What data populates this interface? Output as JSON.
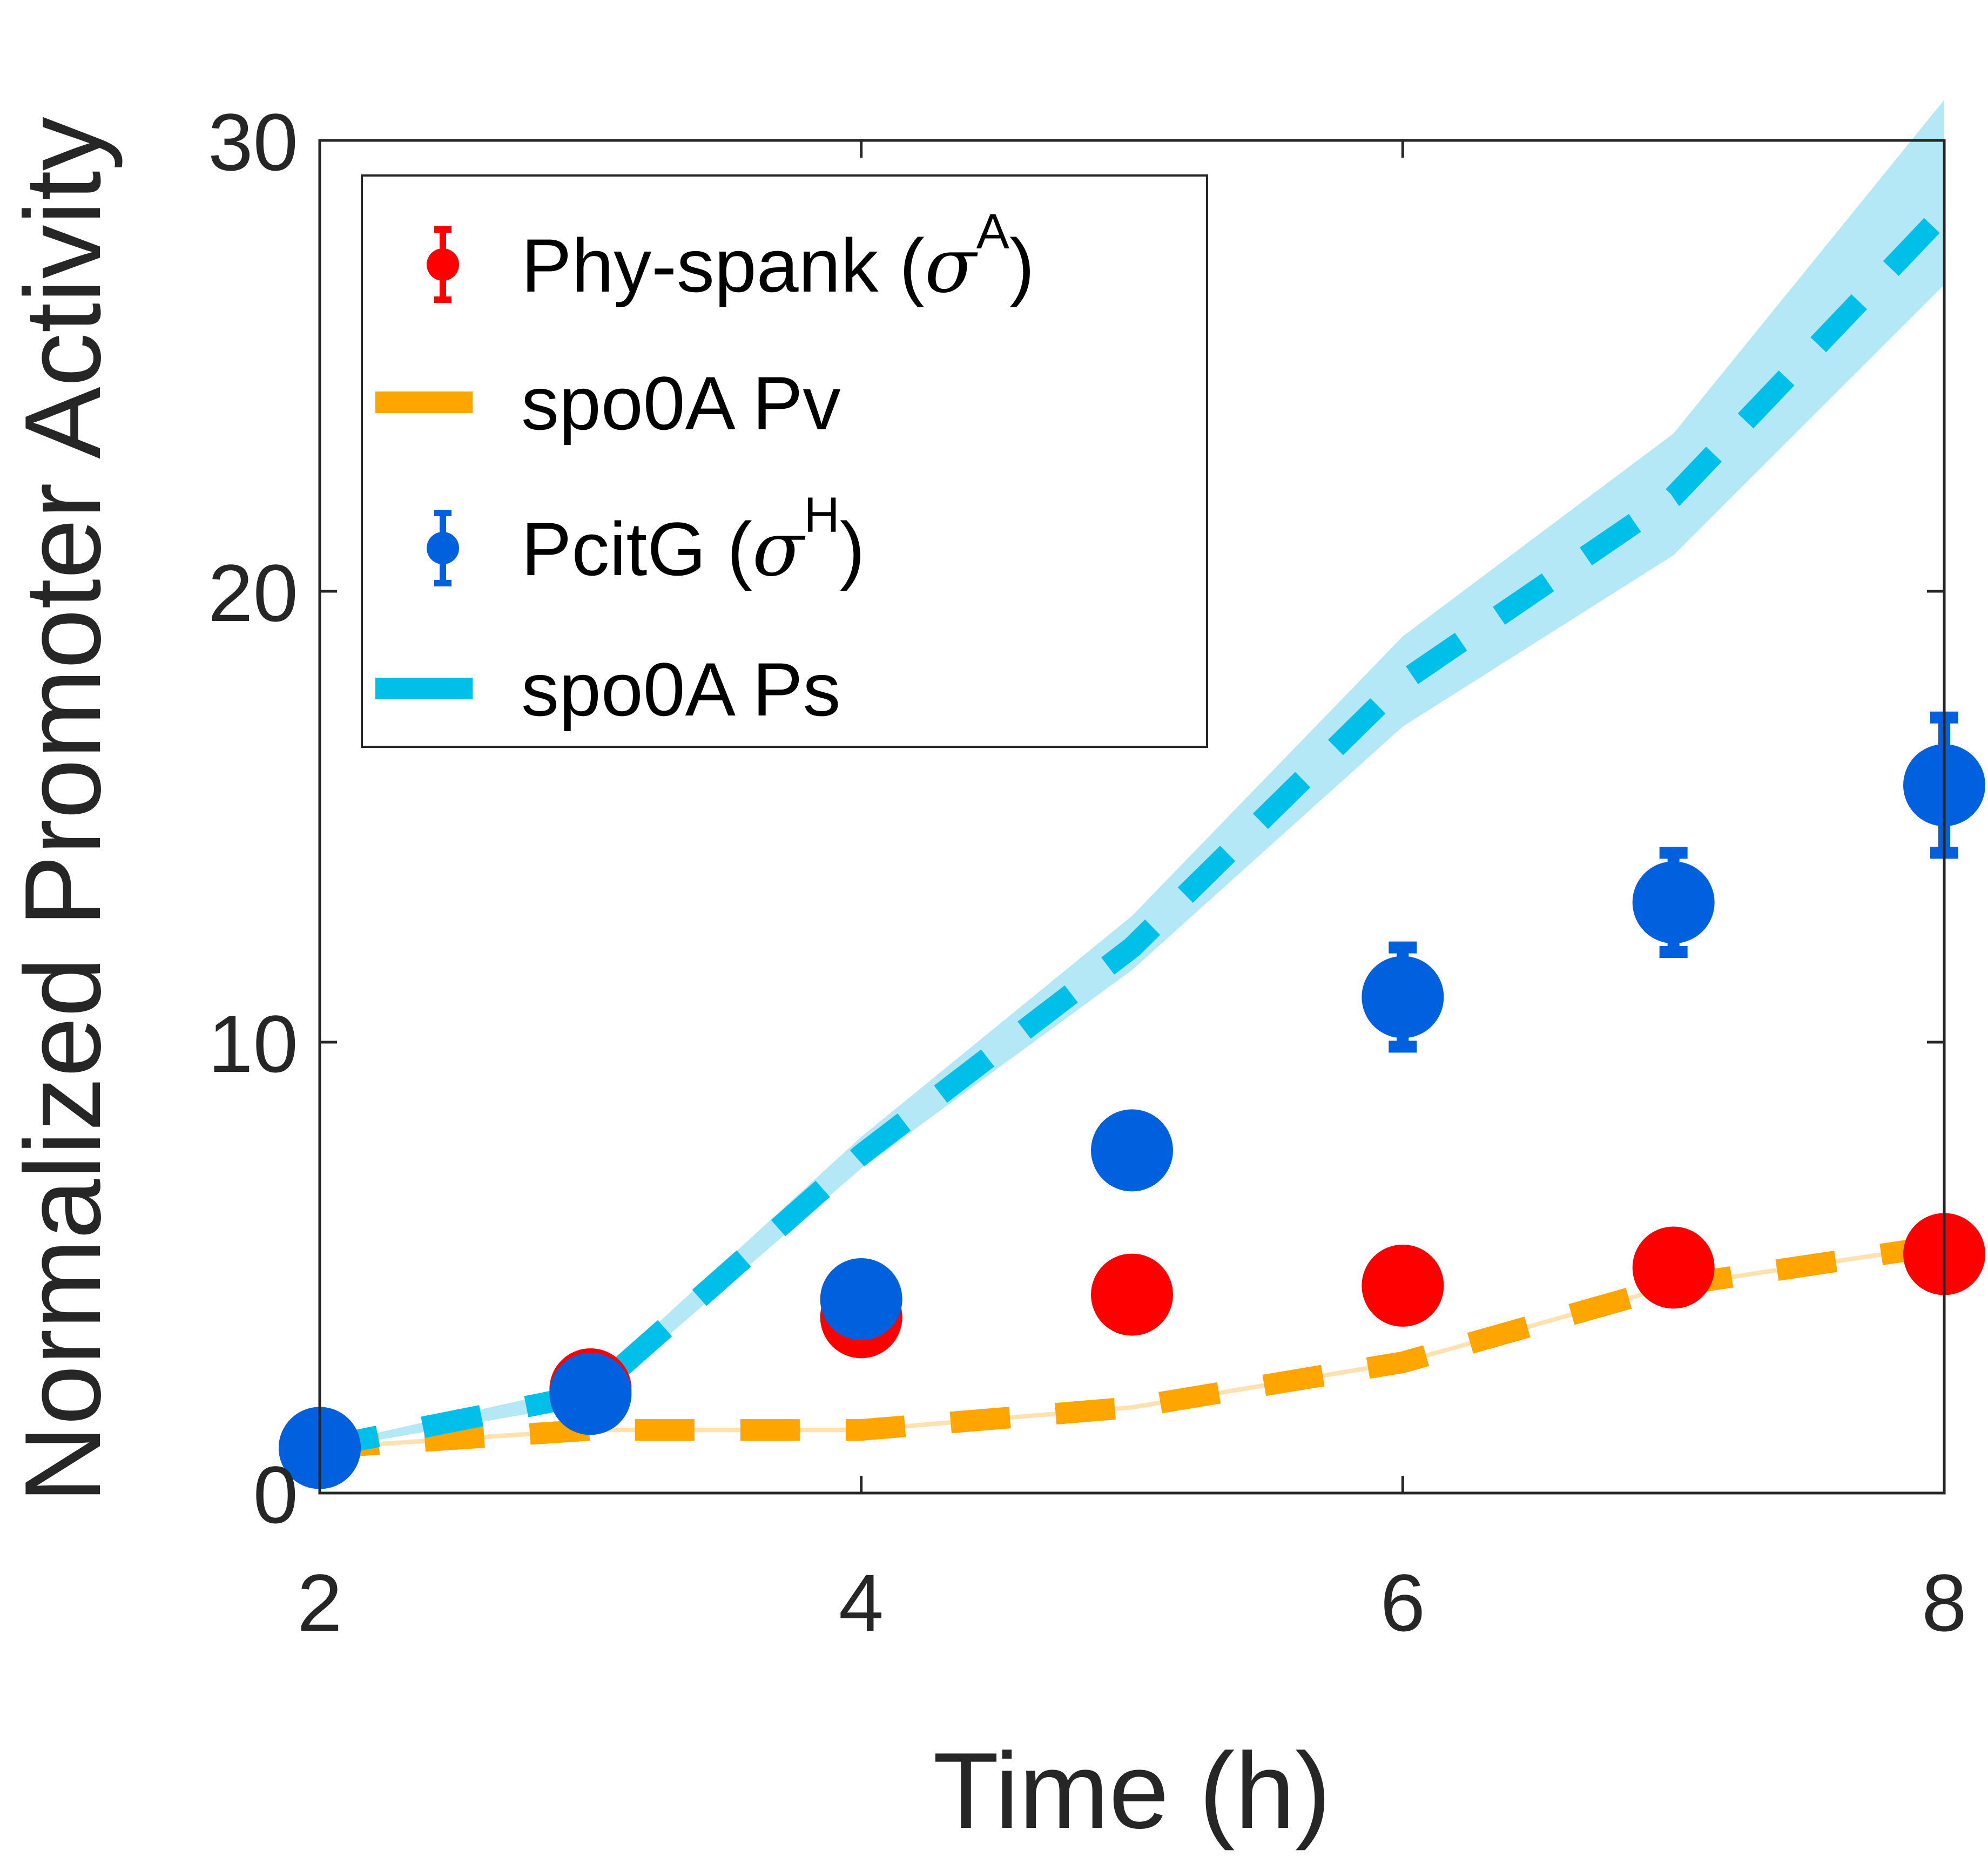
{
  "chart_data": {
    "type": "line",
    "xlabel": "Time (h)",
    "ylabel": "Normalized Promoter Activity",
    "xlim": [
      2,
      8
    ],
    "ylim": [
      0,
      30
    ],
    "xticks": [
      2,
      4,
      6,
      8
    ],
    "yticks": [
      0,
      10,
      20,
      30
    ],
    "grid": false,
    "legend_position": "top-left",
    "series": [
      {
        "name": "Phy-spank",
        "sigma": "A",
        "kind": "errorbar",
        "color": "#ff0000",
        "x": [
          2,
          3,
          4,
          5,
          6,
          7,
          8
        ],
        "y": [
          1.0,
          2.3,
          3.9,
          4.4,
          4.6,
          5.0,
          5.3
        ],
        "err": [
          0.1,
          0.15,
          0.25,
          0.2,
          0.2,
          0.2,
          0.25
        ]
      },
      {
        "name": "spo0A Pv",
        "kind": "dashed-band",
        "color": "#ffa500",
        "band_color": "#ffe2b0",
        "x": [
          2,
          3,
          4,
          5,
          6,
          7,
          8
        ],
        "y": [
          1.0,
          1.4,
          1.4,
          1.9,
          2.9,
          4.6,
          5.5
        ],
        "band_low": [
          0.95,
          1.35,
          1.35,
          1.85,
          2.85,
          4.55,
          5.45
        ],
        "band_high": [
          1.05,
          1.45,
          1.45,
          1.95,
          2.95,
          4.65,
          5.55
        ]
      },
      {
        "name": "PcitG",
        "sigma": "H",
        "kind": "errorbar",
        "color": "#0060dd",
        "x": [
          2,
          3,
          4,
          5,
          6,
          7,
          8
        ],
        "y": [
          1.0,
          2.2,
          4.3,
          7.6,
          11.0,
          13.1,
          15.7
        ],
        "err": [
          0.1,
          0.15,
          0.2,
          0.6,
          1.1,
          1.1,
          1.5
        ]
      },
      {
        "name": "spo0A Ps",
        "kind": "dashed-band",
        "color": "#00c0ea",
        "band_color": "#b4e8f6",
        "x": [
          2,
          3,
          4,
          5,
          6,
          7,
          8
        ],
        "y": [
          1.0,
          2.2,
          7.5,
          12.1,
          18.0,
          22.1,
          28.4
        ],
        "band_low": [
          0.95,
          2.0,
          7.2,
          11.6,
          17.0,
          20.8,
          26.8
        ],
        "band_high": [
          1.05,
          2.4,
          7.9,
          12.8,
          19.0,
          23.5,
          30.9
        ]
      }
    ]
  }
}
